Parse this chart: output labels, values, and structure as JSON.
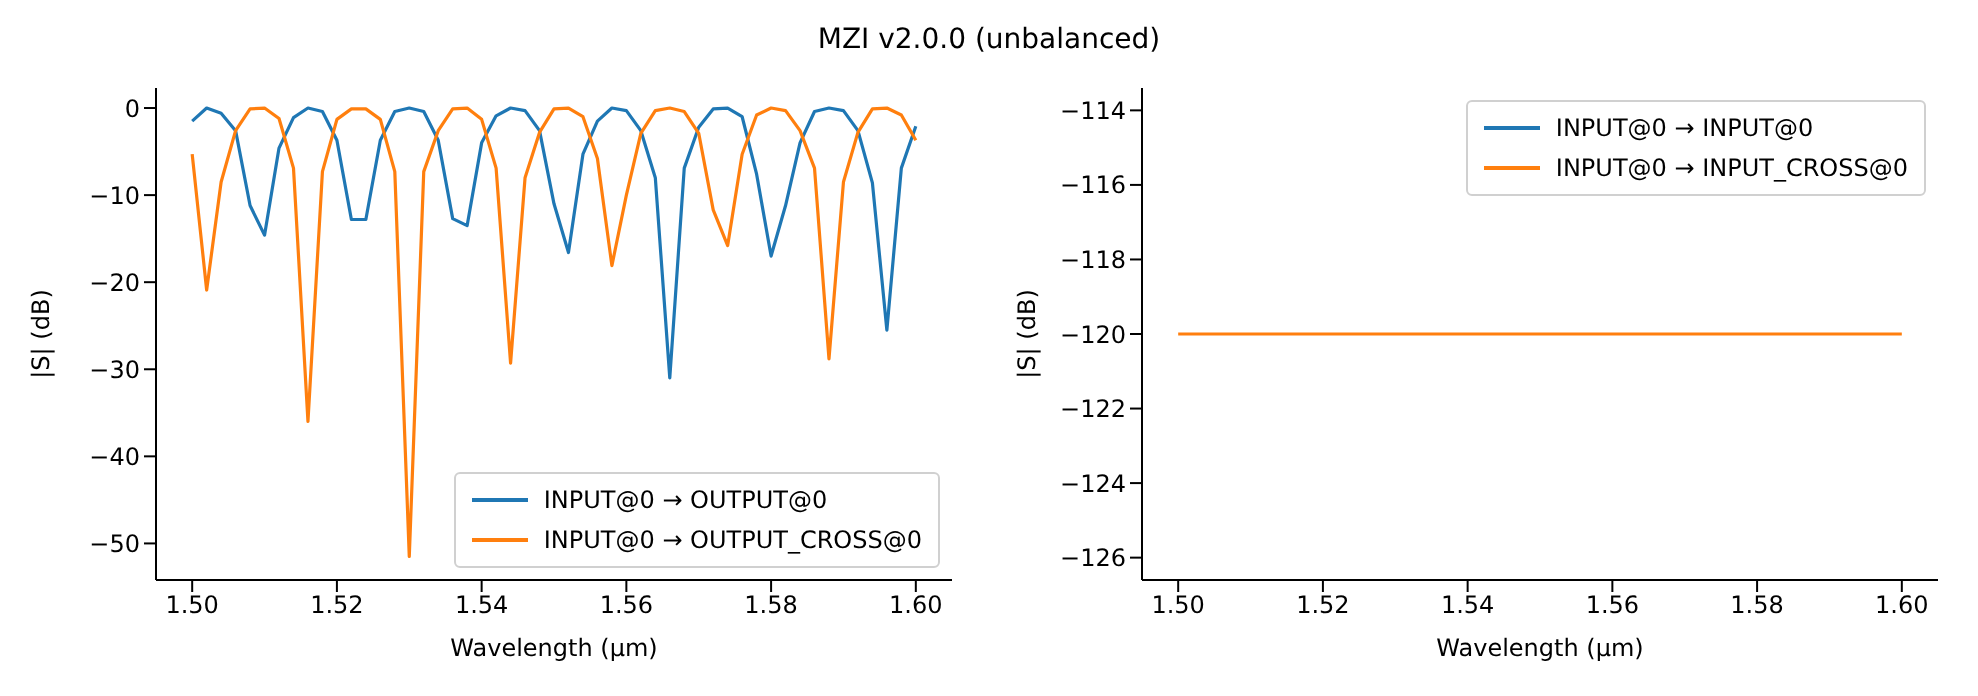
{
  "chart_data": [
    {
      "type": "line",
      "title": "MZI v2.0.0 (unbalanced)",
      "xlabel": "Wavelength (µm)",
      "ylabel": "|S| (dB)",
      "x": [
        1.5,
        1.502,
        1.504,
        1.506,
        1.508,
        1.51,
        1.512,
        1.514,
        1.516,
        1.518,
        1.52,
        1.522,
        1.524,
        1.526,
        1.528,
        1.53,
        1.532,
        1.534,
        1.536,
        1.538,
        1.54,
        1.542,
        1.544,
        1.546,
        1.548,
        1.55,
        1.552,
        1.554,
        1.556,
        1.558,
        1.56,
        1.562,
        1.564,
        1.566,
        1.568,
        1.57,
        1.572,
        1.574,
        1.576,
        1.578,
        1.58,
        1.582,
        1.584,
        1.586,
        1.588,
        1.59,
        1.592,
        1.594,
        1.596,
        1.598,
        1.6
      ],
      "series": [
        {
          "name": "INPUT@0 → OUTPUT@0",
          "color": "#1f77b4",
          "values": [
            -1.5,
            0,
            -0.6,
            -2.6,
            -11.2,
            -14.6,
            -4.6,
            -1.1,
            0,
            -0.4,
            -3.7,
            -12.8,
            -12.8,
            -3.7,
            -0.4,
            0,
            -0.4,
            -3.7,
            -12.7,
            -13.5,
            -4,
            -0.9,
            0,
            -0.3,
            -2.6,
            -11,
            -16.6,
            -5.3,
            -1.5,
            0,
            -0.3,
            -2.6,
            -8,
            -31,
            -6.9,
            -2.2,
            -0.1,
            0,
            -1,
            -7.6,
            -17,
            -11.2,
            -4,
            -0.4,
            0,
            -0.3,
            -2.6,
            -8.6,
            -25.5,
            -6.9,
            -2.1
          ]
        },
        {
          "name": "INPUT@0 → OUTPUT_CROSS@0",
          "color": "#ff7f0e",
          "values": [
            -5.3,
            -20.9,
            -8.5,
            -2.6,
            -0.1,
            0,
            -1.2,
            -6.9,
            -36,
            -7.3,
            -1.3,
            -0.1,
            -0.1,
            -1.3,
            -7.3,
            -51.5,
            -7.3,
            -2.6,
            -0.1,
            0,
            -1.3,
            -6.9,
            -29.3,
            -8,
            -2.8,
            -0.1,
            0,
            -1,
            -5.8,
            -18.1,
            -10,
            -2.9,
            -0.3,
            0,
            -0.4,
            -2.9,
            -11.7,
            -15.8,
            -5.3,
            -0.8,
            0,
            -0.3,
            -2.6,
            -6.9,
            -28.8,
            -8.5,
            -2.8,
            -0.1,
            0,
            -0.8,
            -3.7
          ]
        }
      ],
      "xlim": [
        1.495,
        1.605
      ],
      "xticks": [
        {
          "value": 1.5,
          "label": "1.50"
        },
        {
          "value": 1.52,
          "label": "1.52"
        },
        {
          "value": 1.54,
          "label": "1.54"
        },
        {
          "value": 1.56,
          "label": "1.56"
        },
        {
          "value": 1.58,
          "label": "1.58"
        },
        {
          "value": 1.6,
          "label": "1.60"
        }
      ],
      "ylim": [
        -54.2,
        2.3
      ],
      "yticks": [
        {
          "value": -50,
          "label": "−50"
        },
        {
          "value": -40,
          "label": "−40"
        },
        {
          "value": -30,
          "label": "−30"
        },
        {
          "value": -20,
          "label": "−20"
        },
        {
          "value": -10,
          "label": "−10"
        },
        0
      ],
      "legend": "bottom right",
      "grid": false,
      "marker": "none",
      "line_style": "solid"
    },
    {
      "type": "line",
      "xlabel": "Wavelength (µm)",
      "ylabel": "|S| (dB)",
      "x": [
        1.5,
        1.6
      ],
      "series": [
        {
          "name": "INPUT@0 → INPUT@0",
          "color": "#1f77b4",
          "values": [
            null,
            null
          ]
        },
        {
          "name": "INPUT@0 → INPUT_CROSS@0",
          "color": "#ff7f0e",
          "values": [
            -120,
            -120
          ]
        }
      ],
      "xlim": [
        1.495,
        1.605
      ],
      "xticks": [
        {
          "value": 1.5,
          "label": "1.50"
        },
        {
          "value": 1.52,
          "label": "1.52"
        },
        {
          "value": 1.54,
          "label": "1.54"
        },
        {
          "value": 1.56,
          "label": "1.56"
        },
        {
          "value": 1.58,
          "label": "1.58"
        },
        {
          "value": 1.6,
          "label": "1.60"
        }
      ],
      "ylim": [
        -126.6,
        -113.4
      ],
      "yticks": [
        {
          "value": -126,
          "label": "−126"
        },
        {
          "value": -124,
          "label": "−124"
        },
        {
          "value": -122,
          "label": "−122"
        },
        {
          "value": -120,
          "label": "−120"
        },
        {
          "value": -118,
          "label": "−118"
        },
        {
          "value": -116,
          "label": "−116"
        },
        {
          "value": -114,
          "label": "−114"
        }
      ],
      "legend": "top right",
      "grid": false,
      "marker": "none",
      "line_style": "solid"
    }
  ]
}
